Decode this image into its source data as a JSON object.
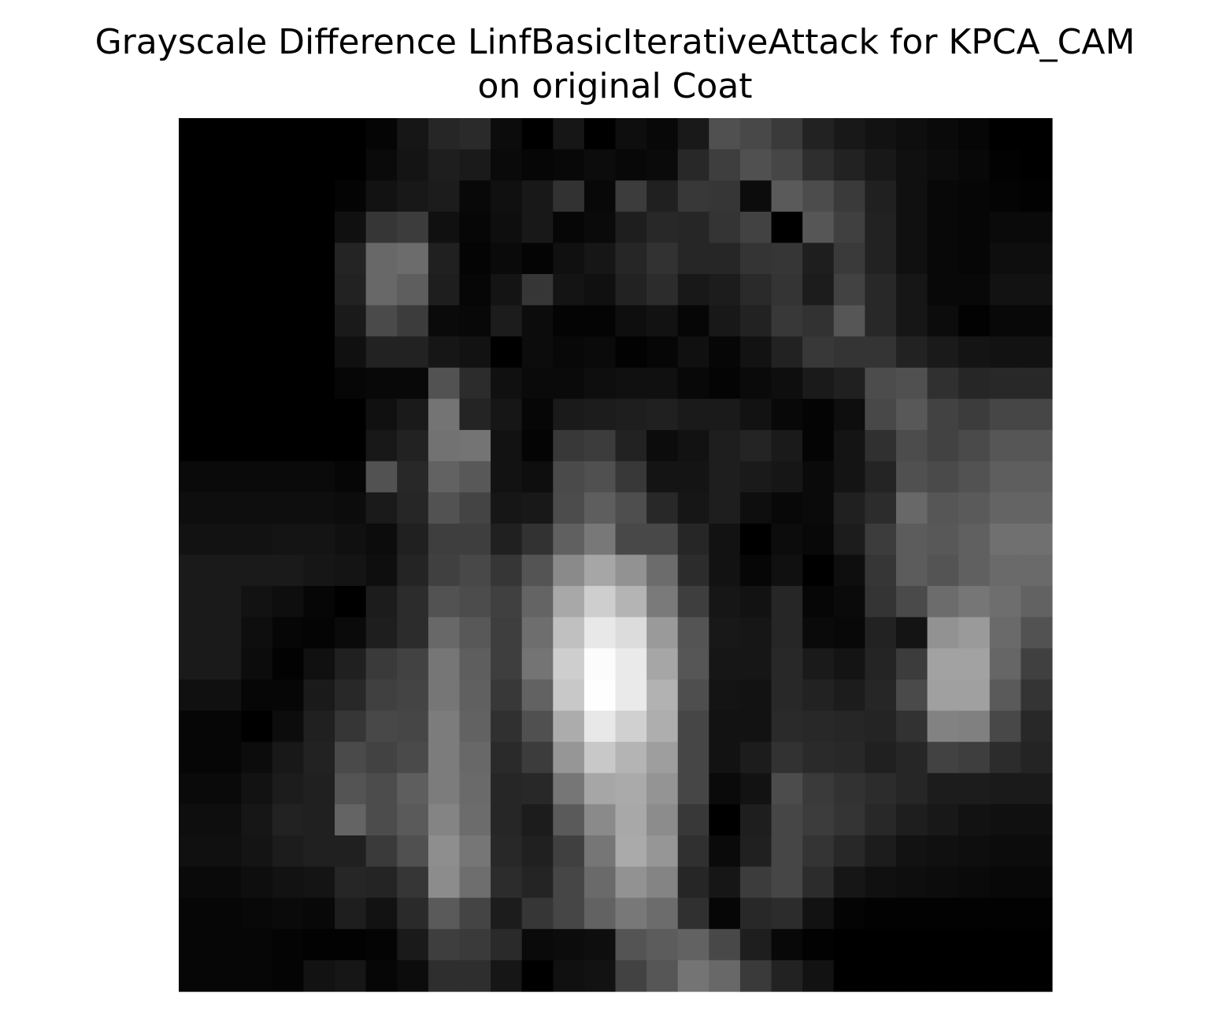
{
  "figure": {
    "title_line1": "Grayscale Difference LinfBasicIterativeAttack for KPCA_CAM",
    "title_line2": "on original Coat"
  },
  "chart_data": {
    "type": "heatmap",
    "title": "Grayscale Difference LinfBasicIterativeAttack for KPCA_CAM on original Coat",
    "colormap": "gray",
    "axes_visible": false,
    "rows": 28,
    "cols": 28,
    "values": [
      [
        0,
        0,
        0,
        0,
        0,
        0,
        5,
        22,
        38,
        42,
        12,
        0,
        22,
        0,
        14,
        8,
        25,
        80,
        72,
        58,
        34,
        24,
        18,
        14,
        10,
        6,
        0,
        0
      ],
      [
        0,
        0,
        0,
        0,
        0,
        0,
        10,
        20,
        30,
        26,
        10,
        6,
        8,
        12,
        8,
        10,
        40,
        62,
        80,
        70,
        46,
        34,
        24,
        16,
        12,
        8,
        2,
        0
      ],
      [
        0,
        0,
        0,
        0,
        0,
        4,
        18,
        24,
        28,
        8,
        16,
        24,
        50,
        8,
        60,
        32,
        56,
        54,
        12,
        90,
        76,
        58,
        32,
        16,
        8,
        6,
        4,
        2
      ],
      [
        0,
        0,
        0,
        0,
        0,
        16,
        54,
        60,
        16,
        6,
        14,
        24,
        6,
        10,
        30,
        40,
        38,
        52,
        66,
        0,
        86,
        64,
        34,
        16,
        8,
        6,
        10,
        10
      ],
      [
        0,
        0,
        0,
        0,
        0,
        36,
        104,
        108,
        32,
        4,
        10,
        4,
        16,
        22,
        38,
        50,
        38,
        38,
        52,
        54,
        30,
        58,
        34,
        16,
        8,
        6,
        14,
        14
      ],
      [
        0,
        0,
        0,
        0,
        0,
        34,
        104,
        94,
        30,
        6,
        20,
        54,
        20,
        16,
        34,
        44,
        24,
        28,
        42,
        52,
        28,
        66,
        40,
        22,
        8,
        8,
        18,
        18
      ],
      [
        0,
        0,
        0,
        0,
        0,
        26,
        74,
        60,
        10,
        8,
        28,
        12,
        4,
        4,
        14,
        18,
        6,
        24,
        34,
        56,
        50,
        86,
        40,
        22,
        12,
        2,
        8,
        8
      ],
      [
        0,
        0,
        0,
        0,
        0,
        16,
        34,
        34,
        22,
        18,
        0,
        12,
        8,
        10,
        2,
        6,
        16,
        6,
        18,
        34,
        56,
        52,
        52,
        34,
        26,
        20,
        18,
        18
      ],
      [
        0,
        0,
        0,
        0,
        0,
        6,
        8,
        8,
        82,
        44,
        16,
        10,
        10,
        14,
        16,
        16,
        8,
        4,
        10,
        14,
        26,
        32,
        76,
        80,
        48,
        38,
        40,
        40
      ],
      [
        0,
        0,
        0,
        0,
        0,
        0,
        16,
        26,
        116,
        36,
        22,
        6,
        26,
        28,
        30,
        32,
        26,
        26,
        18,
        8,
        4,
        14,
        72,
        88,
        66,
        60,
        70,
        70
      ],
      [
        0,
        0,
        0,
        0,
        0,
        0,
        24,
        34,
        114,
        116,
        18,
        4,
        56,
        60,
        34,
        12,
        18,
        30,
        36,
        26,
        4,
        20,
        48,
        76,
        66,
        74,
        86,
        86
      ],
      [
        10,
        10,
        10,
        10,
        10,
        6,
        82,
        40,
        98,
        88,
        18,
        14,
        74,
        80,
        56,
        20,
        20,
        30,
        26,
        22,
        10,
        20,
        36,
        80,
        74,
        82,
        94,
        94
      ],
      [
        14,
        14,
        14,
        14,
        14,
        12,
        26,
        38,
        82,
        68,
        22,
        24,
        76,
        94,
        78,
        40,
        22,
        30,
        14,
        8,
        10,
        32,
        44,
        104,
        86,
        90,
        100,
        100
      ],
      [
        18,
        18,
        18,
        20,
        20,
        16,
        12,
        32,
        62,
        62,
        32,
        50,
        96,
        120,
        72,
        72,
        38,
        18,
        0,
        12,
        8,
        28,
        60,
        92,
        88,
        96,
        112,
        112
      ],
      [
        26,
        26,
        26,
        26,
        22,
        20,
        14,
        36,
        64,
        72,
        54,
        84,
        138,
        166,
        146,
        108,
        44,
        18,
        6,
        16,
        0,
        14,
        54,
        92,
        84,
        96,
        106,
        106
      ],
      [
        26,
        26,
        18,
        14,
        6,
        0,
        28,
        44,
        82,
        76,
        64,
        100,
        168,
        206,
        180,
        122,
        62,
        22,
        18,
        38,
        6,
        10,
        52,
        74,
        108,
        118,
        110,
        98
      ],
      [
        26,
        26,
        14,
        6,
        4,
        10,
        30,
        44,
        104,
        88,
        62,
        110,
        192,
        232,
        220,
        154,
        84,
        24,
        22,
        38,
        10,
        8,
        34,
        20,
        146,
        154,
        106,
        82
      ],
      [
        26,
        26,
        12,
        2,
        16,
        32,
        58,
        66,
        118,
        94,
        62,
        116,
        206,
        252,
        234,
        166,
        86,
        22,
        22,
        40,
        26,
        20,
        36,
        60,
        162,
        162,
        102,
        64
      ],
      [
        16,
        16,
        6,
        6,
        26,
        40,
        64,
        68,
        118,
        96,
        56,
        98,
        200,
        254,
        234,
        178,
        78,
        20,
        18,
        40,
        34,
        28,
        38,
        74,
        160,
        160,
        90,
        52
      ],
      [
        6,
        6,
        0,
        12,
        32,
        54,
        72,
        70,
        124,
        98,
        48,
        80,
        172,
        232,
        208,
        174,
        70,
        18,
        18,
        42,
        40,
        38,
        36,
        50,
        130,
        128,
        72,
        40
      ],
      [
        6,
        6,
        12,
        24,
        34,
        74,
        66,
        74,
        124,
        104,
        42,
        60,
        150,
        200,
        180,
        158,
        70,
        18,
        28,
        50,
        42,
        40,
        32,
        38,
        66,
        62,
        44,
        36
      ],
      [
        10,
        10,
        18,
        28,
        32,
        84,
        76,
        94,
        124,
        106,
        38,
        40,
        118,
        166,
        170,
        148,
        70,
        10,
        18,
        76,
        58,
        50,
        44,
        38,
        28,
        28,
        26,
        26
      ],
      [
        14,
        14,
        22,
        34,
        32,
        100,
        76,
        90,
        132,
        108,
        38,
        28,
        90,
        138,
        168,
        140,
        56,
        0,
        30,
        70,
        60,
        52,
        40,
        30,
        24,
        18,
        16,
        16
      ],
      [
        16,
        16,
        20,
        28,
        32,
        32,
        58,
        80,
        142,
        118,
        40,
        32,
        64,
        118,
        170,
        150,
        48,
        10,
        32,
        70,
        52,
        40,
        28,
        18,
        16,
        14,
        12,
        12
      ],
      [
        10,
        10,
        14,
        18,
        20,
        38,
        36,
        54,
        140,
        110,
        44,
        36,
        70,
        106,
        146,
        132,
        38,
        22,
        60,
        70,
        44,
        22,
        16,
        14,
        12,
        10,
        8,
        8
      ],
      [
        6,
        6,
        8,
        10,
        8,
        30,
        18,
        42,
        90,
        68,
        28,
        54,
        70,
        98,
        120,
        108,
        48,
        6,
        40,
        44,
        18,
        4,
        2,
        2,
        2,
        2,
        2,
        2
      ],
      [
        6,
        6,
        6,
        4,
        2,
        2,
        4,
        26,
        62,
        58,
        42,
        10,
        12,
        14,
        84,
        92,
        98,
        72,
        30,
        8,
        2,
        0,
        0,
        0,
        0,
        0,
        0,
        0
      ],
      [
        6,
        6,
        6,
        4,
        18,
        22,
        6,
        12,
        46,
        46,
        22,
        0,
        16,
        18,
        66,
        86,
        116,
        104,
        58,
        34,
        18,
        0,
        0,
        0,
        0,
        0,
        0,
        0
      ]
    ]
  }
}
